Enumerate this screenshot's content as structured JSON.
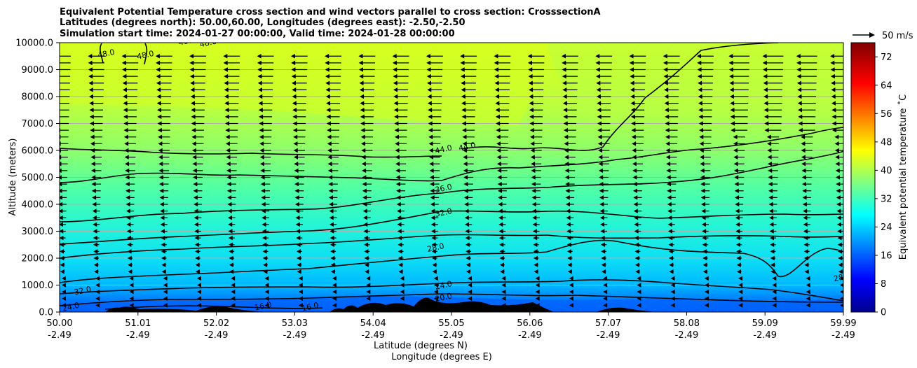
{
  "chart_data": {
    "type": "heatmap",
    "title_lines": [
      "Equivalent Potential Temperature cross section and wind vectors parallel to cross section: CrosssectionA",
      "Latitudes (degrees north): 50.00,60.00, Longitudes (degrees east): -2.50,-2.50",
      "Simulation start time: 2024-01-27 00:00:00, Valid time: 2024-01-28 00:00:00"
    ],
    "ylabel": "Altitude (meters)",
    "xlabel_line1": "Latitude (degrees N)",
    "xlabel_line2": "Longitude (degrees E)",
    "y_ticks": [
      "0.0",
      "1000.0",
      "2000.0",
      "3000.0",
      "4000.0",
      "5000.0",
      "6000.0",
      "7000.0",
      "8000.0",
      "9000.0",
      "10000.0"
    ],
    "ylim": [
      0,
      10000
    ],
    "x_ticks_lat": [
      "50.00",
      "51.01",
      "52.02",
      "53.03",
      "54.04",
      "55.05",
      "56.06",
      "57.07",
      "58.08",
      "59.09",
      "59.99"
    ],
    "x_ticks_lon": [
      "-2.49",
      "-2.49",
      "-2.49",
      "-2.49",
      "-2.49",
      "-2.49",
      "-2.49",
      "-2.49",
      "-2.49",
      "-2.49",
      "-2.49"
    ],
    "xlim": [
      50.0,
      59.99
    ],
    "grid": "horizontal",
    "colorbar": {
      "label": "Equivalent potential temperature ˚C",
      "ticks": [
        "0",
        "8",
        "16",
        "24",
        "32",
        "40",
        "48",
        "56",
        "64",
        "72"
      ],
      "range": [
        0,
        76
      ],
      "colormap": "jet"
    },
    "quiver_key": "50 m/s",
    "contour_levels": [
      16.0,
      20.0,
      24.0,
      28.0,
      32.0,
      36.0,
      40.0,
      44.0,
      48.0
    ],
    "contour_labels": [
      {
        "text": "48.0",
        "lat": 50.6,
        "alt": 9500
      },
      {
        "text": "48.0",
        "lat": 51.1,
        "alt": 9450
      },
      {
        "text": "48.",
        "lat": 51.6,
        "alt": 9950
      },
      {
        "text": "48.0",
        "lat": 51.9,
        "alt": 9900
      },
      {
        "text": "44.0",
        "lat": 54.9,
        "alt": 5950
      },
      {
        "text": "44.0",
        "lat": 55.2,
        "alt": 6050
      },
      {
        "text": "36.0",
        "lat": 54.9,
        "alt": 4500
      },
      {
        "text": "32.0",
        "lat": 54.9,
        "alt": 3600
      },
      {
        "text": "28.0",
        "lat": 54.8,
        "alt": 2300
      },
      {
        "text": "24.0",
        "lat": 54.9,
        "alt": 900
      },
      {
        "text": "20.0",
        "lat": 54.9,
        "alt": 450
      },
      {
        "text": "16.0",
        "lat": 52.6,
        "alt": 130
      },
      {
        "text": "16.0",
        "lat": 53.2,
        "alt": 100
      },
      {
        "text": "32.0",
        "lat": 50.3,
        "alt": 700
      },
      {
        "text": "24.0",
        "lat": 50.15,
        "alt": 100
      },
      {
        "text": "28.0",
        "lat": 59.98,
        "alt": 1200
      }
    ]
  }
}
